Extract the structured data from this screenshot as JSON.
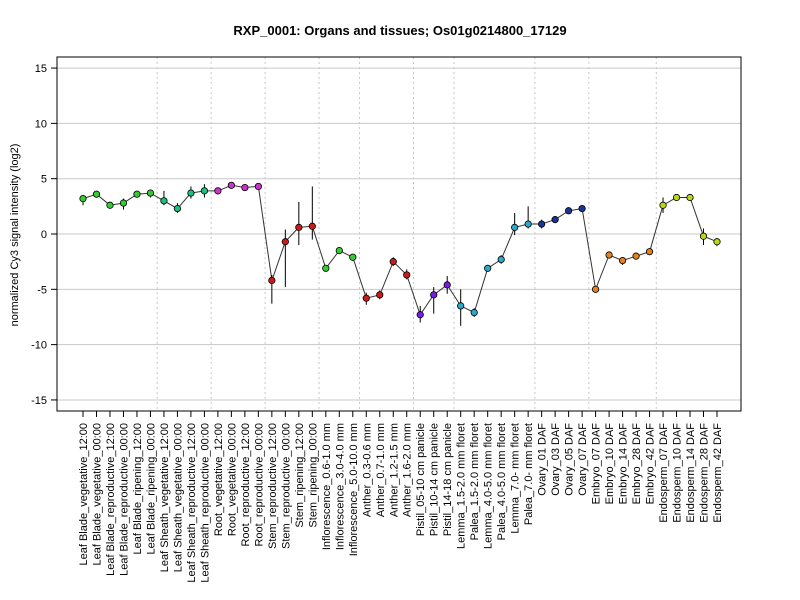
{
  "chart_data": {
    "type": "line",
    "title": "RXP_0001: Organs and tissues; Os01g0214800_17129",
    "ylabel": "normalized Cy3 signal intensity (log2)",
    "xlabel": "",
    "ylim": [
      -16,
      16
    ],
    "yticks": [
      -15,
      -10,
      -5,
      0,
      5,
      10,
      15
    ],
    "grid": true,
    "categories": [
      "Leaf Blade_vegetative_12:00",
      "Leaf Blade_vegetative_00:00",
      "Leaf Blade_reproductive_12:00",
      "Leaf Blade_reproductive_00:00",
      "Leaf Blade_ripening_12:00",
      "Leaf Blade_ripening_00:00",
      "Leaf Sheath_vegetative_12:00",
      "Leaf Sheath_vegetative_00:00",
      "Leaf Sheath_reproductive_12:00",
      "Leaf Sheath_reproductive_00:00",
      "Root_vegetative_12:00",
      "Root_vegetative_00:00",
      "Root_reproductive_12:00",
      "Root_reproductive_00:00",
      "Stem_reproductive_12:00",
      "Stem_reproductive_00:00",
      "Stem_ripening_12:00",
      "Stem_ripening_00:00",
      "Inflorescence_0.6-1.0 mm",
      "Inflorescence_3.0-4.0 mm",
      "Inflorescence_5.0-10.0 mm",
      "Anther_0.3-0.6 mm",
      "Anther_0.7-1.0 mm",
      "Anther_1.2-1.5 mm",
      "Anther_1.6-2.0 mm",
      "Pistil_05-10 cm panicle",
      "Pistil_10-14 cm panicle",
      "Pistil_14-18 cm panicle",
      "Lemma_1.5-2.0 mm floret",
      "Palea_1.5-2.0 mm floret",
      "Lemma_4.0-5.0 mm floret",
      "Palea_4.0-5.0 mm floret",
      "Lemma_7.0- mm floret",
      "Palea_7.0- mm floret",
      "Ovary_01 DAF",
      "Ovary_03 DAF",
      "Ovary_05 DAF",
      "Ovary_07 DAF",
      "Embryo_07 DAF",
      "Embryo_10 DAF",
      "Embryo_14 DAF",
      "Embryo_28 DAF",
      "Embryo_42 DAF",
      "Endosperm_07 DAF",
      "Endosperm_10 DAF",
      "Endosperm_14 DAF",
      "Endosperm_28 DAF",
      "Endosperm_42 DAF"
    ],
    "values": [
      3.2,
      3.6,
      2.6,
      2.8,
      3.6,
      3.7,
      3.0,
      2.3,
      3.7,
      3.9,
      3.9,
      4.4,
      4.2,
      4.3,
      -4.2,
      -0.7,
      0.6,
      0.7,
      -3.1,
      -1.5,
      -2.1,
      -5.8,
      -5.5,
      -2.5,
      -3.7,
      -7.3,
      -5.5,
      -4.6,
      -6.5,
      -7.1,
      -3.1,
      -2.3,
      0.6,
      0.9,
      0.9,
      1.3,
      2.1,
      2.3,
      -5.0,
      -1.9,
      -2.4,
      -2.0,
      -1.6,
      2.6,
      3.3,
      3.3,
      -0.2,
      -0.7
    ],
    "error_low": [
      2.6,
      3.3,
      2.4,
      2.2,
      3.4,
      3.3,
      2.6,
      1.9,
      3.2,
      3.3,
      3.6,
      4.2,
      4.0,
      4.0,
      -6.3,
      -4.8,
      -1.0,
      -0.5,
      -3.3,
      -1.8,
      -2.4,
      -6.4,
      -5.9,
      -2.9,
      -4.1,
      -8.0,
      -7.2,
      -5.4,
      -8.3,
      -7.5,
      -3.4,
      -2.7,
      -0.1,
      0.5,
      0.5,
      1.0,
      1.9,
      2.1,
      -5.3,
      -2.1,
      -2.8,
      -2.3,
      -1.9,
      1.9,
      3.1,
      3.0,
      -1.0,
      -1.1
    ],
    "error_high": [
      3.5,
      3.9,
      2.8,
      3.2,
      3.9,
      4.0,
      3.9,
      2.8,
      4.3,
      4.5,
      4.1,
      4.6,
      4.4,
      4.6,
      -3.7,
      0.4,
      2.9,
      4.3,
      -2.8,
      -1.2,
      -1.9,
      -5.3,
      -5.1,
      -2.1,
      -3.2,
      -6.5,
      -4.8,
      -3.8,
      -5.0,
      -6.7,
      -2.8,
      -1.9,
      1.9,
      2.5,
      1.3,
      1.6,
      2.3,
      2.5,
      -4.7,
      -1.7,
      -2.1,
      -1.7,
      -1.3,
      3.3,
      3.5,
      3.5,
      0.5,
      -0.4
    ],
    "point_colors": [
      "#33CC33",
      "#33CC33",
      "#33CC33",
      "#33CC33",
      "#33CC33",
      "#33CC33",
      "#1FBF7F",
      "#1FBF7F",
      "#1FBF7F",
      "#1FBF7F",
      "#CC33CC",
      "#CC33CC",
      "#CC33CC",
      "#CC33CC",
      "#CC1A1A",
      "#CC1A1A",
      "#CC1A1A",
      "#CC1A1A",
      "#33CC33",
      "#33CC33",
      "#33CC33",
      "#CC1A1A",
      "#CC1A1A",
      "#CC1A1A",
      "#CC1A1A",
      "#7A1AE6",
      "#7A1AE6",
      "#7A1AE6",
      "#2BA8C9",
      "#2BA8C9",
      "#2BA8C9",
      "#2BA8C9",
      "#2BA8C9",
      "#2BA8C9",
      "#1A3399",
      "#1A3399",
      "#1A3399",
      "#1A3399",
      "#E6801A",
      "#E6801A",
      "#E6801A",
      "#E6801A",
      "#E6801A",
      "#B3D91A",
      "#B3D91A",
      "#B3D91A",
      "#B3D91A",
      "#B3D91A"
    ],
    "separator_after_indices": [
      5,
      9,
      13,
      17,
      20,
      24,
      27,
      33,
      37,
      42
    ]
  }
}
